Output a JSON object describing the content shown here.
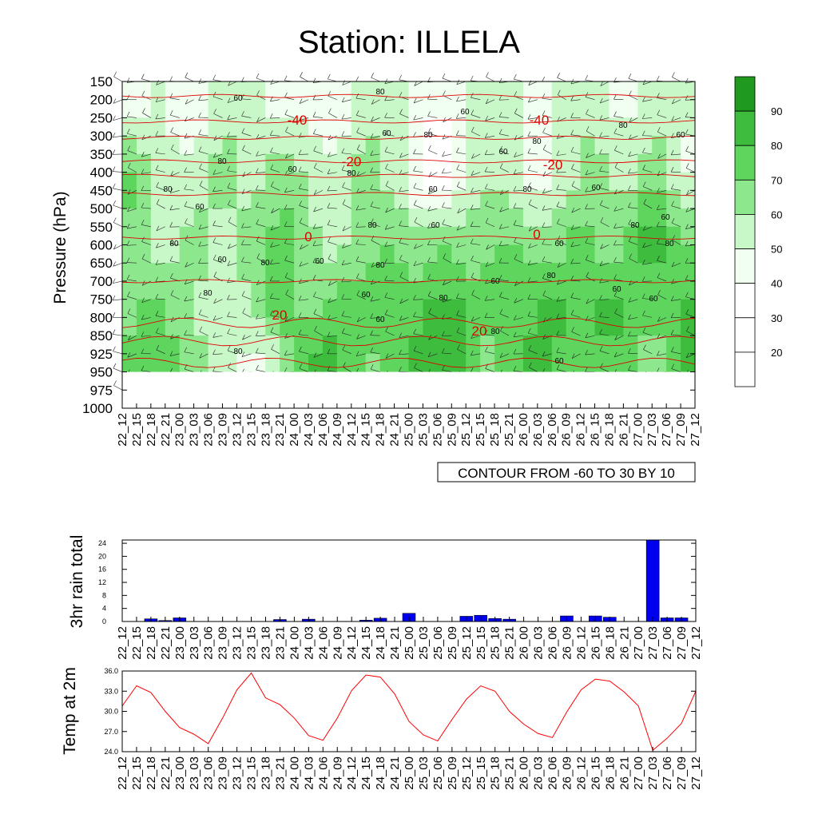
{
  "chart_data": [
    {
      "type": "heatmap",
      "title": "Station: ILLELA",
      "ylabel": "Pressure (hPa)",
      "xlabel": "",
      "y_ticks": [
        "150",
        "200",
        "250",
        "300",
        "350",
        "400",
        "450",
        "500",
        "550",
        "600",
        "650",
        "700",
        "750",
        "800",
        "850",
        "925",
        "950",
        "975",
        "1000"
      ],
      "x_ticks": [
        "22_12",
        "22_15",
        "22_18",
        "22_21",
        "23_00",
        "23_03",
        "23_06",
        "23_09",
        "23_12",
        "23_15",
        "23_18",
        "23_21",
        "24_00",
        "24_03",
        "24_06",
        "24_09",
        "24_12",
        "24_15",
        "24_18",
        "24_21",
        "25_00",
        "25_03",
        "25_06",
        "25_09",
        "25_12",
        "25_15",
        "25_18",
        "25_21",
        "26_00",
        "26_03",
        "26_06",
        "26_09",
        "26_12",
        "26_15",
        "26_18",
        "26_21",
        "27_00",
        "27_03",
        "27_06",
        "27_09",
        "27_12"
      ],
      "shaded_variable": "relative humidity (%)",
      "colorbar": {
        "levels": [
          20,
          30,
          40,
          50,
          60,
          70,
          80,
          90
        ],
        "colors": [
          "#ffffff",
          "#ffffff",
          "#ffffff",
          "#f0fff0",
          "#c8f7c8",
          "#8de88d",
          "#5ed65e",
          "#3ebc3e",
          "#1f9a1f"
        ]
      },
      "rh_contour_labels": [
        "60",
        "80",
        "40"
      ],
      "temperature_contour_labels": [
        "-40",
        "-40",
        "-20",
        "-20",
        "0",
        "0",
        "20",
        "20"
      ],
      "footer": "CONTOUR FROM -60 TO 30 BY 10",
      "approx_rh_grid_by_level": [
        {
          "level": "200",
          "values": [
            45,
            40,
            55,
            50,
            45,
            40,
            45,
            55,
            60,
            55,
            45,
            40,
            45,
            50,
            45,
            40,
            45,
            55,
            60,
            55,
            50,
            45,
            40,
            45,
            50,
            55,
            60,
            55,
            50,
            45,
            50,
            55,
            60,
            55,
            50,
            45,
            50,
            55,
            60,
            55,
            50
          ]
        },
        {
          "level": "400",
          "values": [
            75,
            70,
            60,
            55,
            50,
            55,
            60,
            65,
            60,
            55,
            60,
            70,
            65,
            55,
            50,
            55,
            60,
            65,
            60,
            55,
            45,
            35,
            30,
            40,
            50,
            55,
            60,
            55,
            45,
            40,
            45,
            55,
            60,
            65,
            60,
            55,
            60,
            65,
            60,
            50,
            45
          ]
        },
        {
          "level": "600",
          "values": [
            70,
            65,
            60,
            55,
            60,
            65,
            60,
            55,
            60,
            65,
            70,
            75,
            70,
            65,
            60,
            55,
            60,
            65,
            70,
            70,
            65,
            65,
            70,
            70,
            65,
            65,
            70,
            70,
            70,
            65,
            65,
            70,
            75,
            70,
            65,
            70,
            80,
            85,
            80,
            75,
            70
          ]
        },
        {
          "level": "800",
          "values": [
            65,
            70,
            75,
            70,
            65,
            60,
            55,
            50,
            55,
            60,
            65,
            75,
            70,
            65,
            70,
            75,
            80,
            80,
            80,
            75,
            75,
            80,
            85,
            85,
            80,
            75,
            75,
            75,
            75,
            80,
            85,
            80,
            75,
            80,
            85,
            80,
            75,
            70,
            75,
            80,
            85
          ]
        },
        {
          "level": "925",
          "values": [
            70,
            75,
            80,
            75,
            70,
            65,
            60,
            55,
            50,
            45,
            50,
            60,
            75,
            80,
            85,
            80,
            75,
            70,
            65,
            75,
            80,
            85,
            90,
            85,
            75,
            70,
            65,
            75,
            80,
            85,
            80,
            75,
            70,
            75,
            80,
            75,
            70,
            65,
            70,
            80,
            85
          ]
        }
      ]
    },
    {
      "type": "bar",
      "ylabel": "3hr rain total",
      "categories": [
        "22_12",
        "22_15",
        "22_18",
        "22_21",
        "23_00",
        "23_03",
        "23_06",
        "23_09",
        "23_12",
        "23_15",
        "23_18",
        "23_21",
        "24_00",
        "24_03",
        "24_06",
        "24_09",
        "24_12",
        "24_15",
        "24_18",
        "24_21",
        "25_00",
        "25_03",
        "25_06",
        "25_09",
        "25_12",
        "25_15",
        "25_18",
        "25_21",
        "26_00",
        "26_03",
        "26_06",
        "26_09",
        "26_12",
        "26_15",
        "26_18",
        "26_21",
        "27_00",
        "27_03",
        "27_06",
        "27_09",
        "27_12"
      ],
      "values": [
        0,
        0,
        0.8,
        0.3,
        1.1,
        0,
        0,
        0,
        0,
        0,
        0,
        0.6,
        0,
        0.7,
        0,
        0,
        0,
        0.4,
        1.0,
        0,
        2.5,
        0,
        0,
        0,
        1.6,
        1.9,
        0.9,
        0.7,
        0,
        0,
        0,
        1.7,
        0,
        1.7,
        1.3,
        0,
        0,
        25,
        1.1,
        1.1,
        0
      ],
      "ylim": [
        0,
        25
      ],
      "y_ticks": [
        "0",
        "4",
        "8",
        "12",
        "16",
        "20",
        "24"
      ],
      "bar_color": "#0000ee"
    },
    {
      "type": "line",
      "ylabel": "Temp at 2m",
      "categories": [
        "22_12",
        "22_15",
        "22_18",
        "22_21",
        "23_00",
        "23_03",
        "23_06",
        "23_09",
        "23_12",
        "23_15",
        "23_18",
        "23_21",
        "24_00",
        "24_03",
        "24_06",
        "24_09",
        "24_12",
        "24_15",
        "24_18",
        "24_21",
        "25_00",
        "25_03",
        "25_06",
        "25_09",
        "25_12",
        "25_15",
        "25_18",
        "25_21",
        "26_00",
        "26_03",
        "26_06",
        "26_09",
        "26_12",
        "26_15",
        "26_18",
        "26_21",
        "27_00",
        "27_03",
        "27_06",
        "27_09",
        "27_12"
      ],
      "values": [
        30.8,
        33.8,
        32.8,
        30.0,
        27.6,
        26.6,
        25.2,
        29.0,
        33.2,
        35.7,
        32.0,
        31.0,
        29.0,
        26.4,
        25.7,
        29.0,
        33.1,
        35.4,
        35.1,
        32.6,
        28.5,
        26.5,
        25.6,
        28.8,
        31.8,
        33.8,
        33.0,
        30.0,
        28.1,
        26.7,
        26.1,
        29.9,
        33.2,
        34.8,
        34.5,
        32.9,
        30.8,
        24.2,
        26.0,
        28.2,
        33.0
      ],
      "ylim": [
        24.0,
        36.0
      ],
      "y_ticks": [
        "24.0",
        "27.0",
        "30.0",
        "33.0",
        "36.0"
      ],
      "line_color": "#ff0000"
    }
  ],
  "labels": {
    "title": "Station: ILLELA",
    "main_ylabel": "Pressure (hPa)",
    "rain_ylabel": "3hr rain total",
    "temp_ylabel": "Temp at 2m",
    "footer": "CONTOUR FROM -60 TO 30 BY 10"
  },
  "colors": {
    "rain_bar": "#0000ee",
    "temp_line": "#ff0000",
    "contour_temp": "#e00000"
  }
}
